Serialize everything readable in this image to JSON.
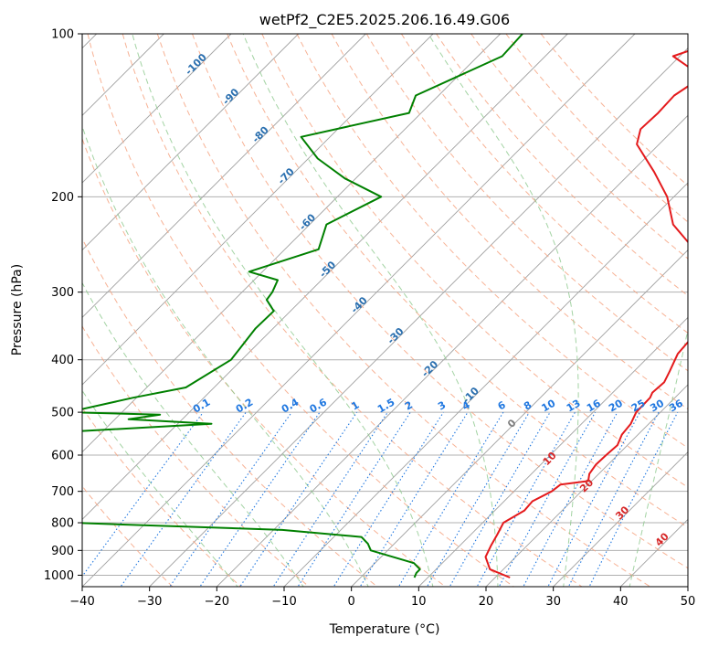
{
  "chart_data": {
    "type": "line",
    "title": "wetPf2_C2E5.2025.206.16.49.G06",
    "xlabel": "Temperature (°C)",
    "ylabel": "Pressure (hPa)",
    "xlim": [
      -40,
      50
    ],
    "ylim": [
      1050,
      100
    ],
    "y_scale": "log",
    "skew": true,
    "x_ticks": [
      -40,
      -30,
      -20,
      -10,
      0,
      10,
      20,
      30,
      40,
      50
    ],
    "y_ticks": [
      100,
      200,
      300,
      400,
      500,
      600,
      700,
      800,
      900,
      1000
    ],
    "series": [
      {
        "role": "temperature",
        "color": "#e41a1c",
        "x": [
          22.2,
          18,
          15.5,
          14.6,
          13.9,
          13.1,
          14.4,
          14.2,
          15.6,
          15.9,
          19.5,
          18.6,
          18.2,
          18.3,
          18.5,
          17.6,
          17.3,
          16.4,
          16.3,
          15.9,
          16.1,
          15.3,
          13.9,
          13.4,
          10.9,
          7.7,
          0.8,
          -6.0,
          -11.0,
          -16.6,
          -23.3,
          -25.0,
          -24.8,
          -25.0,
          -23.6,
          -31.0,
          -26.0,
          -31.0
        ],
        "y": [
          1010,
          975,
          925,
          880,
          840,
          800,
          760,
          730,
          700,
          680,
          670,
          650,
          625,
          600,
          575,
          550,
          525,
          500,
          470,
          460,
          440,
          420,
          390,
          350,
          320,
          290,
          250,
          225,
          200,
          180,
          160,
          150,
          140,
          130,
          120,
          110,
          102,
          100
        ]
      },
      {
        "role": "dewpoint",
        "color": "#008000",
        "x": [
          8,
          7.6,
          7.6,
          5.8,
          -2.5,
          -3.9,
          -5.9,
          -18.7,
          -51.2,
          -60.3,
          -58.4,
          -61.4,
          -76.0,
          -67.0,
          -68.7,
          -70.9,
          -70.5,
          -75.1,
          -71.5,
          -81.4,
          -82.2,
          -78.7,
          -72,
          -45,
          -58.0,
          -54,
          -68.0,
          -60.5,
          -54.2,
          -51.6,
          -52.6,
          -52.5,
          -55.2,
          -55.5,
          -56.5,
          -62.0,
          -55.0,
          -57.5,
          -53.5,
          -61.6,
          -68.6,
          -74.3,
          -61.8,
          -63.4,
          -56.4,
          -56.7
        ],
        "y": [
          1010,
          990,
          975,
          950,
          900,
          875,
          850,
          825,
          800,
          775,
          760,
          750,
          700,
          690,
          675,
          660,
          645,
          625,
          600,
          590,
          575,
          560,
          550,
          525,
          515,
          505,
          500,
          470,
          450,
          400,
          350,
          325,
          310,
          300,
          285,
          275,
          250,
          225,
          200,
          185,
          170,
          155,
          140,
          130,
          110,
          100
        ]
      }
    ],
    "isotherm_labels": [
      "-100",
      "-90",
      "-80",
      "-70",
      "-60",
      "-50",
      "-40",
      "-30",
      "-20",
      "-10"
    ],
    "mixing_ratio_labels": [
      "0.1",
      "0.2",
      "0.4",
      "0.6",
      "1",
      "1.5",
      "2",
      "3",
      "4",
      "6",
      "8",
      "10",
      "13",
      "16",
      "20",
      "25",
      "30",
      "36"
    ],
    "mixing_ratio_values": [
      0.1,
      0.2,
      0.4,
      0.6,
      1,
      1.5,
      2,
      3,
      4,
      6,
      8,
      10,
      13,
      16,
      20,
      25,
      30,
      36
    ],
    "moist_adiabat_labels": [
      "0",
      "10",
      "20",
      "30",
      "40"
    ],
    "moist_adiabat_values": [
      0,
      10,
      20,
      30,
      40
    ],
    "dry_adiabat_thetas_c": [
      -30,
      -20,
      -10,
      0,
      10,
      20,
      30,
      40,
      50,
      60,
      70,
      80,
      90,
      100,
      110,
      120,
      130,
      140,
      150
    ],
    "moist_adiabat_starts_c": [
      -20,
      -10,
      0,
      10,
      20,
      30,
      40,
      50
    ],
    "colors": {
      "isotherm": "#a0a0a0",
      "grid": "#b0b0b0",
      "dry_adiabat": "#f6a583",
      "moist_adiabat": "#8cc88c",
      "mixing_ratio": "#1f77e0",
      "isotherm_label": "#2a6faf",
      "moist_label": "#d62728",
      "zero_label": "#7f7f7f",
      "edge_curve": "#d8b898"
    }
  }
}
